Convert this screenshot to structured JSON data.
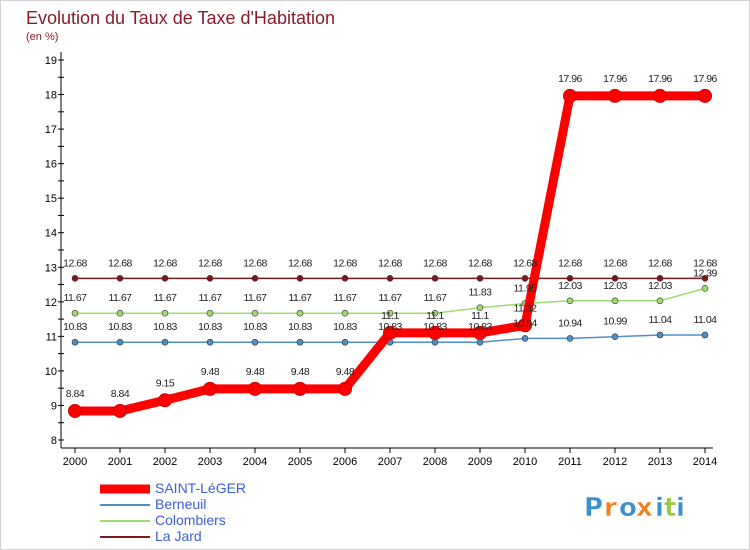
{
  "chart_data": {
    "type": "line",
    "title": "Evolution du Taux de Taxe d'Habitation",
    "subtitle": "(en %)",
    "xlabel": "",
    "ylabel": "",
    "ylim": [
      8,
      19
    ],
    "yticks": [
      "8",
      "9",
      "10",
      "11",
      "12",
      "13",
      "14",
      "15",
      "16",
      "17",
      "18",
      "19"
    ],
    "x": [
      "2000",
      "2001",
      "2002",
      "2003",
      "2004",
      "2005",
      "2006",
      "2007",
      "2008",
      "2009",
      "2010",
      "2011",
      "2012",
      "2013",
      "2014"
    ],
    "series": [
      {
        "name": "SAINT-LéGER",
        "color": "#ff0000",
        "values": [
          8.84,
          8.84,
          9.15,
          9.48,
          9.48,
          9.48,
          9.48,
          11.1,
          11.1,
          11.1,
          11.32,
          17.96,
          17.96,
          17.96,
          17.96
        ],
        "labels": [
          "8.84",
          "8.84",
          "9.15",
          "9.48",
          "9.48",
          "9.48",
          "9.48",
          "11.1",
          "11.1",
          "11.1",
          "11.32",
          "17.96",
          "17.96",
          "17.96",
          "17.96"
        ]
      },
      {
        "name": "Berneuil",
        "color": "#4f8fc7",
        "values": [
          10.83,
          10.83,
          10.83,
          10.83,
          10.83,
          10.83,
          10.83,
          10.83,
          10.83,
          10.83,
          10.94,
          10.94,
          10.99,
          11.04,
          11.04
        ],
        "labels": [
          "10.83",
          "10.83",
          "10.83",
          "10.83",
          "10.83",
          "10.83",
          "10.83",
          "10.83",
          "10.83",
          "10.83",
          "10.94",
          "10.94",
          "10.99",
          "11.04",
          "11.04"
        ]
      },
      {
        "name": "Colombiers",
        "color": "#9ddc6e",
        "values": [
          11.67,
          11.67,
          11.67,
          11.67,
          11.67,
          11.67,
          11.67,
          11.67,
          11.67,
          11.83,
          11.95,
          12.03,
          12.03,
          12.03,
          12.39
        ],
        "labels": [
          "11.67",
          "11.67",
          "11.67",
          "11.67",
          "11.67",
          "11.67",
          "11.67",
          "11.67",
          "11.67",
          "11.83",
          "11.95",
          "12.03",
          "12.03",
          "12.03",
          "12.39"
        ]
      },
      {
        "name": "La Jard",
        "color": "#7b1a1a",
        "values": [
          12.68,
          12.68,
          12.68,
          12.68,
          12.68,
          12.68,
          12.68,
          12.68,
          12.68,
          12.68,
          12.68,
          12.68,
          12.68,
          12.68,
          12.68
        ],
        "labels": [
          "12.68",
          "12.68",
          "12.68",
          "12.68",
          "12.68",
          "12.68",
          "12.68",
          "12.68",
          "12.68",
          "12.68",
          "12.68",
          "12.68",
          "12.68",
          "12.68",
          "12.68"
        ]
      }
    ],
    "legend": [
      "SAINT-LéGER",
      "Berneuil",
      "Colombiers",
      "La Jard"
    ],
    "legend_position": "bottom-left",
    "grid": false
  },
  "brand": {
    "logo_text": "Proxiti",
    "letters": [
      "P",
      "r",
      "o",
      "x",
      "i",
      "t",
      "i"
    ],
    "letter_colors": [
      "#3a8fd0",
      "#f0801a",
      "#3a8fd0",
      "#f0801a",
      "#3a8fd0",
      "#9bc641",
      "#3a8fd0"
    ]
  },
  "colors": {
    "title": "#8b1a2b",
    "axis": "#000000",
    "tick_text": "#000000",
    "legend_text": "#3b5fd6",
    "frame": "#bdbdbd"
  }
}
